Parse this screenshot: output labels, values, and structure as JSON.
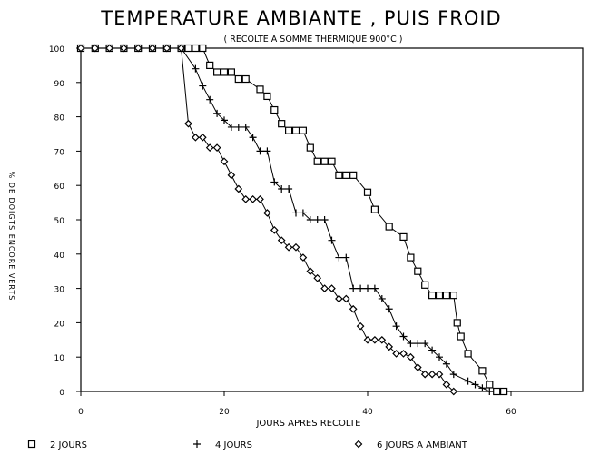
{
  "chart_data": {
    "type": "line",
    "title": "TEMPERATURE AMBIANTE , PUIS FROID",
    "subtitle": "( RECOLTE A SOMME THERMIQUE 900°C )",
    "xlabel": "JOURS APRES RECOLTE",
    "ylabel": "% DE DOIGTS ENCORE VERTS",
    "xlim": [
      0,
      70
    ],
    "ylim": [
      0,
      100
    ],
    "xticks": [
      "0",
      "20",
      "40",
      "60"
    ],
    "yticks": [
      "0",
      "10",
      "20",
      "30",
      "40",
      "50",
      "60",
      "70",
      "80",
      "90",
      "100"
    ],
    "grid": false,
    "legend": "bottom",
    "series": [
      {
        "name": "2 JOURS",
        "marker": "square",
        "x": [
          0,
          2,
          4,
          6,
          8,
          10,
          12,
          14,
          15,
          16,
          17,
          18,
          19,
          20,
          21,
          22,
          23,
          25,
          26,
          27,
          28,
          29,
          30,
          31,
          32,
          33,
          34,
          35,
          36,
          37,
          38,
          40,
          41,
          43,
          45,
          46,
          47,
          48,
          49,
          50,
          51,
          52,
          52.5,
          53,
          54,
          56,
          57,
          58,
          59
        ],
        "y": [
          100,
          100,
          100,
          100,
          100,
          100,
          100,
          100,
          100,
          100,
          100,
          95,
          93,
          93,
          93,
          91,
          91,
          88,
          86,
          82,
          78,
          76,
          76,
          76,
          71,
          67,
          67,
          67,
          63,
          63,
          63,
          58,
          53,
          48,
          45,
          39,
          35,
          31,
          28,
          28,
          28,
          28,
          20,
          16,
          11,
          6,
          2,
          0,
          0
        ]
      },
      {
        "name": "4 JOURS",
        "marker": "plus",
        "x": [
          0,
          2,
          4,
          6,
          8,
          10,
          12,
          14,
          16,
          17,
          18,
          19,
          20,
          21,
          22,
          23,
          24,
          25,
          26,
          27,
          28,
          29,
          30,
          31,
          32,
          33,
          34,
          35,
          36,
          37,
          38,
          39,
          40,
          41,
          42,
          43,
          44,
          45,
          46,
          47,
          48,
          49,
          50,
          51,
          52,
          54,
          55,
          56,
          57
        ],
        "y": [
          100,
          100,
          100,
          100,
          100,
          100,
          100,
          100,
          94,
          89,
          85,
          81,
          79,
          77,
          77,
          77,
          74,
          70,
          70,
          61,
          59,
          59,
          52,
          52,
          50,
          50,
          50,
          44,
          39,
          39,
          30,
          30,
          30,
          30,
          27,
          24,
          19,
          16,
          14,
          14,
          14,
          12,
          10,
          8,
          5,
          3,
          2,
          1,
          0
        ]
      },
      {
        "name": "6 JOURS A AMBIANT",
        "marker": "diamond",
        "x": [
          0,
          2,
          4,
          6,
          8,
          10,
          12,
          14,
          15,
          16,
          17,
          18,
          19,
          20,
          21,
          22,
          23,
          24,
          25,
          26,
          27,
          28,
          29,
          30,
          31,
          32,
          33,
          34,
          35,
          36,
          37,
          38,
          39,
          40,
          41,
          42,
          43,
          44,
          45,
          46,
          47,
          48,
          49,
          50,
          51,
          52
        ],
        "y": [
          100,
          100,
          100,
          100,
          100,
          100,
          100,
          100,
          78,
          74,
          74,
          71,
          71,
          67,
          63,
          59,
          56,
          56,
          56,
          52,
          47,
          44,
          42,
          42,
          39,
          35,
          33,
          30,
          30,
          27,
          27,
          24,
          19,
          15,
          15,
          15,
          13,
          11,
          11,
          10,
          7,
          5,
          5,
          5,
          2,
          0
        ]
      }
    ]
  }
}
